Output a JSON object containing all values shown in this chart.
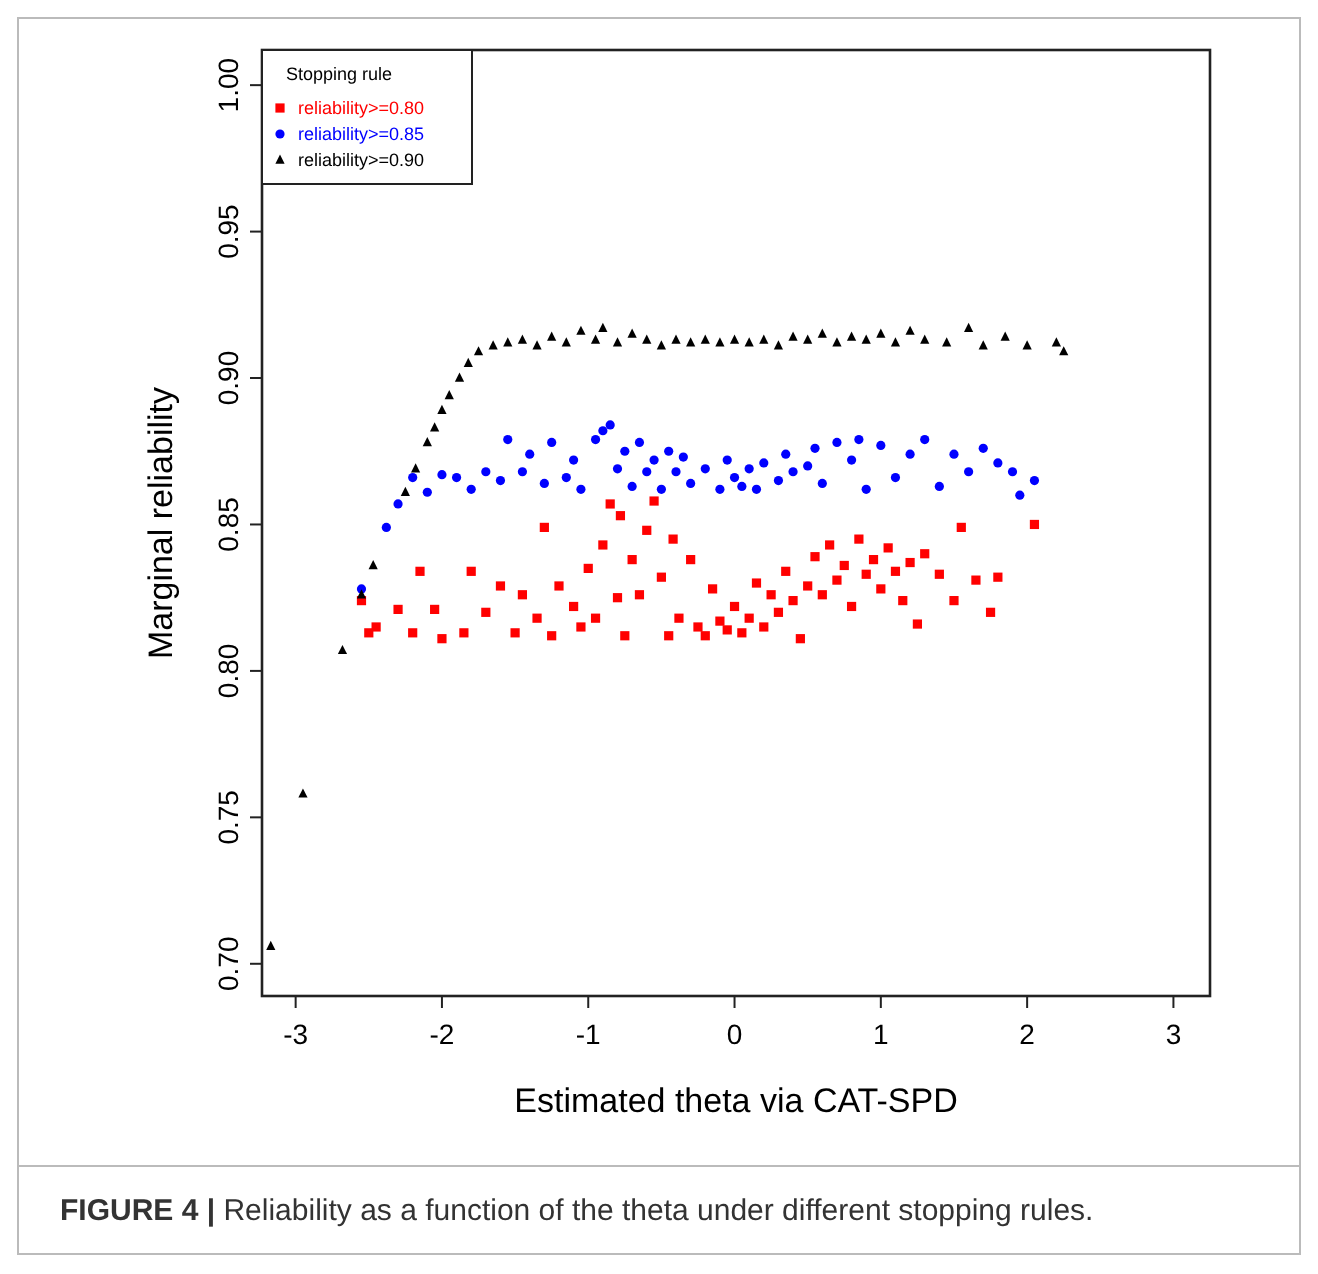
{
  "chart_data": {
    "type": "scatter",
    "xlabel": "Estimated theta via CAT-SPD",
    "ylabel": "Marginal reliability",
    "legend_title": "Stopping rule",
    "legend": "top left",
    "grid": false,
    "xlim": [
      -3.23,
      3.25
    ],
    "ylim": [
      0.689,
      1.012
    ],
    "xticks": [
      -3,
      -2,
      -1,
      0,
      1,
      2,
      3
    ],
    "yticks": [
      {
        "value": 0.7,
        "label": "0.70"
      },
      {
        "value": 0.75,
        "label": "0.75"
      },
      {
        "value": 0.8,
        "label": "0.80"
      },
      {
        "value": 0.85,
        "label": "0.85"
      },
      {
        "value": 0.9,
        "label": "0.90"
      },
      {
        "value": 0.95,
        "label": "0.95"
      },
      {
        "value": 1.0,
        "label": "1.00"
      }
    ],
    "annotations": [
      "FIGURE 4 | Reliability as a function of the theta under different stopping rules."
    ],
    "series": [
      {
        "name": "reliability>=0.80",
        "color": "#ff0000",
        "marker": "square",
        "x": [
          -2.55,
          -2.5,
          -2.45,
          -2.3,
          -2.2,
          -2.15,
          -2.05,
          -2.0,
          -1.85,
          -1.8,
          -1.7,
          -1.6,
          -1.5,
          -1.45,
          -1.35,
          -1.3,
          -1.25,
          -1.2,
          -1.1,
          -1.05,
          -1.0,
          -0.95,
          -0.9,
          -0.85,
          -0.8,
          -0.78,
          -0.75,
          -0.7,
          -0.65,
          -0.6,
          -0.55,
          -0.5,
          -0.45,
          -0.42,
          -0.38,
          -0.3,
          -0.25,
          -0.2,
          -0.15,
          -0.1,
          -0.05,
          0,
          0.05,
          0.1,
          0.15,
          0.2,
          0.25,
          0.3,
          0.35,
          0.4,
          0.45,
          0.5,
          0.55,
          0.6,
          0.65,
          0.7,
          0.75,
          0.8,
          0.85,
          0.9,
          0.95,
          1.0,
          1.05,
          1.1,
          1.15,
          1.2,
          1.25,
          1.3,
          1.4,
          1.5,
          1.55,
          1.65,
          1.75,
          1.8,
          2.05
        ],
        "values": [
          0.824,
          0.813,
          0.815,
          0.821,
          0.813,
          0.834,
          0.821,
          0.811,
          0.813,
          0.834,
          0.82,
          0.829,
          0.813,
          0.826,
          0.818,
          0.849,
          0.812,
          0.829,
          0.822,
          0.815,
          0.835,
          0.818,
          0.843,
          0.857,
          0.825,
          0.853,
          0.812,
          0.838,
          0.826,
          0.848,
          0.858,
          0.832,
          0.812,
          0.845,
          0.818,
          0.838,
          0.815,
          0.812,
          0.828,
          0.817,
          0.814,
          0.822,
          0.813,
          0.818,
          0.83,
          0.815,
          0.826,
          0.82,
          0.834,
          0.824,
          0.811,
          0.829,
          0.839,
          0.826,
          0.843,
          0.831,
          0.836,
          0.822,
          0.845,
          0.833,
          0.838,
          0.828,
          0.842,
          0.834,
          0.824,
          0.837,
          0.816,
          0.84,
          0.833,
          0.824,
          0.849,
          0.831,
          0.82,
          0.832,
          0.85
        ]
      },
      {
        "name": "reliability>=0.85",
        "color": "#0000ff",
        "marker": "circle",
        "x": [
          -2.55,
          -2.38,
          -2.3,
          -2.2,
          -2.1,
          -2.0,
          -1.9,
          -1.8,
          -1.7,
          -1.6,
          -1.55,
          -1.45,
          -1.4,
          -1.3,
          -1.25,
          -1.15,
          -1.1,
          -1.05,
          -0.95,
          -0.9,
          -0.85,
          -0.8,
          -0.75,
          -0.7,
          -0.65,
          -0.6,
          -0.55,
          -0.5,
          -0.45,
          -0.4,
          -0.35,
          -0.3,
          -0.2,
          -0.1,
          -0.05,
          0,
          0.05,
          0.1,
          0.15,
          0.2,
          0.3,
          0.35,
          0.4,
          0.5,
          0.55,
          0.6,
          0.7,
          0.8,
          0.85,
          0.9,
          1.0,
          1.1,
          1.2,
          1.3,
          1.4,
          1.5,
          1.6,
          1.7,
          1.8,
          1.9,
          1.95,
          2.05
        ],
        "values": [
          0.828,
          0.849,
          0.857,
          0.866,
          0.861,
          0.867,
          0.866,
          0.862,
          0.868,
          0.865,
          0.879,
          0.868,
          0.874,
          0.864,
          0.878,
          0.866,
          0.872,
          0.862,
          0.879,
          0.882,
          0.884,
          0.869,
          0.875,
          0.863,
          0.878,
          0.868,
          0.872,
          0.862,
          0.875,
          0.868,
          0.873,
          0.864,
          0.869,
          0.862,
          0.872,
          0.866,
          0.863,
          0.869,
          0.862,
          0.871,
          0.865,
          0.874,
          0.868,
          0.87,
          0.876,
          0.864,
          0.878,
          0.872,
          0.879,
          0.862,
          0.877,
          0.866,
          0.874,
          0.879,
          0.863,
          0.874,
          0.868,
          0.876,
          0.871,
          0.868,
          0.86,
          0.865
        ]
      },
      {
        "name": "reliability>=0.90",
        "color": "#000000",
        "marker": "triangle",
        "x": [
          -3.17,
          -2.95,
          -2.68,
          -2.55,
          -2.47,
          -2.25,
          -2.18,
          -2.1,
          -2.05,
          -2.0,
          -1.95,
          -1.88,
          -1.82,
          -1.75,
          -1.65,
          -1.55,
          -1.45,
          -1.35,
          -1.25,
          -1.15,
          -1.05,
          -0.95,
          -0.9,
          -0.8,
          -0.7,
          -0.6,
          -0.5,
          -0.4,
          -0.3,
          -0.2,
          -0.1,
          0,
          0.1,
          0.2,
          0.3,
          0.4,
          0.5,
          0.6,
          0.7,
          0.8,
          0.9,
          1.0,
          1.1,
          1.2,
          1.3,
          1.45,
          1.6,
          1.7,
          1.85,
          2.0,
          2.2,
          2.25
        ],
        "values": [
          0.706,
          0.758,
          0.807,
          0.826,
          0.836,
          0.861,
          0.869,
          0.878,
          0.883,
          0.889,
          0.894,
          0.9,
          0.905,
          0.909,
          0.911,
          0.912,
          0.913,
          0.911,
          0.914,
          0.912,
          0.916,
          0.913,
          0.917,
          0.912,
          0.915,
          0.913,
          0.911,
          0.913,
          0.912,
          0.913,
          0.912,
          0.913,
          0.912,
          0.913,
          0.911,
          0.914,
          0.913,
          0.915,
          0.912,
          0.914,
          0.913,
          0.915,
          0.912,
          0.916,
          0.913,
          0.912,
          0.917,
          0.911,
          0.914,
          0.911,
          0.912,
          0.909
        ]
      }
    ]
  }
}
